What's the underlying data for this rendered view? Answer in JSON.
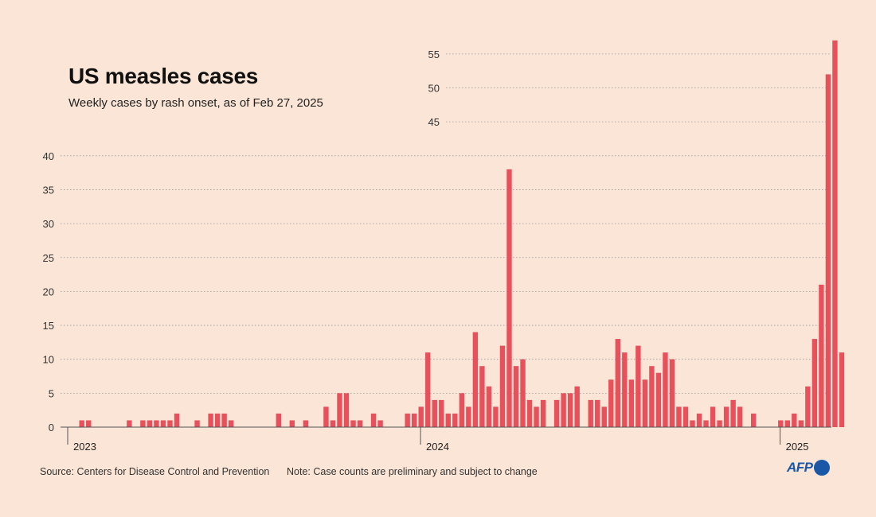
{
  "title": "US measles cases",
  "subtitle": "Weekly cases by rash onset, as of Feb 27, 2025",
  "footer": {
    "source": "Source: Centers for Disease Control and Prevention",
    "note": "Note: Case counts are preliminary and subject to change"
  },
  "logo": {
    "text": "AFP",
    "color": "#1a57a6"
  },
  "colors": {
    "bar": "#e8505b",
    "background": "#fbe5d6",
    "grid": "#999999"
  },
  "chart_data": {
    "type": "bar",
    "title": "US measles cases",
    "subtitle": "Weekly cases by rash onset, as of Feb 27, 2025",
    "xlabel": "",
    "ylabel": "",
    "ylim": [
      0,
      57
    ],
    "grid": true,
    "y_ticks_left": [
      0,
      5,
      10,
      15,
      20,
      25,
      30,
      35,
      40
    ],
    "y_ticks_right": [
      45,
      50,
      55
    ],
    "year_labels": [
      {
        "label": "2023",
        "week_index": 0
      },
      {
        "label": "2024",
        "week_index": 52
      },
      {
        "label": "2025",
        "week_index": 105
      }
    ],
    "values": [
      0,
      1,
      1,
      0,
      0,
      0,
      0,
      0,
      1,
      0,
      1,
      1,
      1,
      1,
      1,
      2,
      0,
      0,
      1,
      0,
      2,
      2,
      2,
      1,
      0,
      0,
      0,
      0,
      0,
      0,
      2,
      0,
      1,
      0,
      1,
      0,
      0,
      3,
      1,
      5,
      5,
      1,
      1,
      0,
      2,
      1,
      0,
      0,
      0,
      2,
      2,
      3,
      11,
      4,
      4,
      2,
      2,
      5,
      3,
      14,
      9,
      6,
      3,
      12,
      38,
      9,
      10,
      4,
      3,
      4,
      0,
      4,
      5,
      5,
      6,
      0,
      4,
      4,
      3,
      7,
      13,
      11,
      7,
      12,
      7,
      9,
      8,
      11,
      10,
      3,
      3,
      1,
      2,
      1,
      3,
      1,
      3,
      4,
      3,
      0,
      2,
      0,
      0,
      0,
      1,
      1,
      2,
      1,
      6,
      13,
      21,
      52,
      57,
      11
    ]
  }
}
